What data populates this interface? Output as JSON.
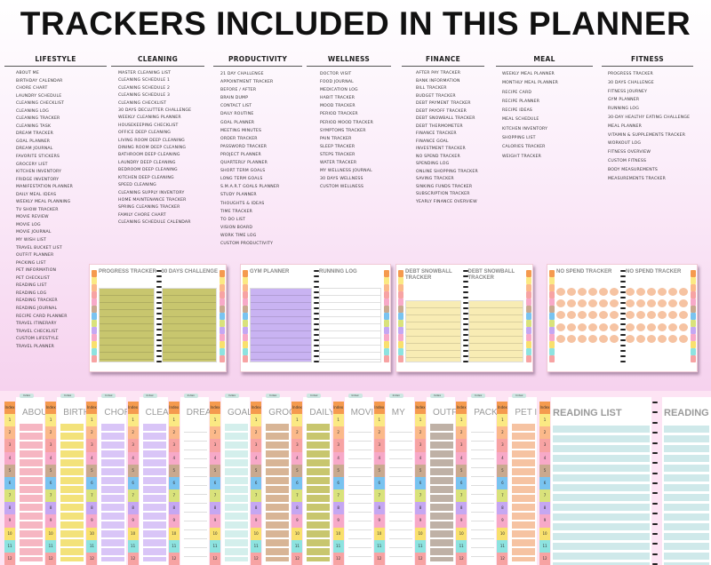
{
  "title": "TRACKERS INCLUDED IN THIS PLANNER",
  "categories": [
    {
      "name": "LIFESTYLE",
      "items": [
        "ABOUT ME",
        "BIRTHDAY CALENDAR",
        "CHORE CHART",
        "LAUNDRY SCHEDULE",
        "CLEANING CHECKLIST",
        "CLEANING LOG",
        "CLEANING TRACKER",
        "CLEANING TASK",
        "DREAM TRACKER",
        "GOAL PLANNER",
        "DREAM JOURNAL",
        "FAVORITE STICKERS",
        "GROCERY LIST",
        "KITCHEN INVENTORY",
        "FRIDGE INVENTORY",
        "MANIFESTATION PLANNER",
        "DAILY MEAL IDEAS",
        "WEEKLY MEAL PLANNING",
        "TV SHOW TRACKER",
        "MOVIE REVIEW",
        "MOVIE LOG",
        "MOVIE JOURNAL",
        "MY WISH LIST",
        "TRAVEL BUCKET LIST",
        "OUTFIT PLANNER",
        "PACKING LIST",
        "PET INFORMATION",
        "PET CHECKLIST",
        "READING LIST",
        "READING LOG",
        "READING TRACKER",
        "READING JOURNAL",
        "RECIPE CARD PLANNER",
        "TRAVEL ITINERARY",
        "TRAVEL CHECKLIST",
        "CUSTOM LIFESTYLE",
        "TRAVEL PLANNER"
      ]
    },
    {
      "name": "CLEANING",
      "items": [
        "MASTER CLEANING LIST",
        "CLEANING SCHEDULE 1",
        "CLEANING SCHEDULE 2",
        "CLEANING SCHEDULE 3",
        "CLEANING CHECKLIST",
        "30 DAYS DECLUTTER CHALLENGE",
        "WEEKLY CLEANING PLANNER",
        "HOUSEKEEPING CHECKLIST",
        "OFFICE DEEP CLEANING",
        "LIVING ROOM DEEP CLEANING",
        "DINING ROOM DEEP CLEANING",
        "BATHROOM DEEP CLEANING",
        "LAUNDRY DEEP CLEANING",
        "BEDROOM DEEP CLEANING",
        "KITCHEN DEEP CLEANING",
        "SPEED CLEANING",
        "CLEANING SUPPLY INVENTORY",
        "HOME MAINTENANCE TRACKER",
        "SPRING CLEANING TRACKER",
        "FAMILY CHORE CHART",
        "CLEANING SCHEDULE CALENDAR"
      ]
    },
    {
      "name": "PRODUCTIVITY",
      "items": [
        "21 DAY CHALLENGE",
        "APPOINTMENT TRACKER",
        "BEFORE / AFTER",
        "BRAIN DUMP",
        "CONTACT LIST",
        "DAILY ROUTINE",
        "GOAL PLANNER",
        "MEETING MINUTES",
        "ORDER TRACKER",
        "PASSWORD TRACKER",
        "PROJECT PLANNER",
        "QUARTERLY PLANNER",
        "SHORT TERM GOALS",
        "LONG TERM GOALS",
        "S.M.A.R.T GOALS PLANNER",
        "STUDY PLANNER",
        "THOUGHTS & IDEAS",
        "TIME TRACKER",
        "TO DO LIST",
        "VISION BOARD",
        "WORK TIME LOG",
        "CUSTOM PRODUCTIVITY"
      ]
    },
    {
      "name": "WELLNESS",
      "items": [
        "DOCTOR VISIT",
        "FOOD JOURNAL",
        "MEDICATION LOG",
        "HABIT TRACKER",
        "MOOD TRACKER",
        "PERIOD TRACKER",
        "PERIOD MOOD TRACKER",
        "SYMPTOMS TRACKER",
        "PAIN TRACKER",
        "SLEEP TRACKER",
        "STEPS TRACKER",
        "WATER TRACKER",
        "MY WELLNESS JOURNAL",
        "30 DAYS WELLNESS",
        "CUSTOM WELLNESS"
      ]
    },
    {
      "name": "FINANCE",
      "items": [
        "AFTER PAY TRACKER",
        "BANK INFORMATION",
        "BILL TRACKER",
        "BUDGET TRACKER",
        "DEBT PAYMENT TRACKER",
        "DEBT PAYOFF TRACKER",
        "DEBT SNOWBALL TRACKER",
        "DEBT THERMOMETER",
        "FINANCE TRACKER",
        "FINANCE GOAL",
        "INVESTMENT TRACKER",
        "NO SPEND TRACKER",
        "SPENDING LOG",
        "ONLINE SHOPPING TRACKER",
        "SAVING TRACKER",
        "SINKING FUNDS TRACKER",
        "SUBSCRIPTION TRACKER",
        "YEARLY FINANCE OVERVIEW"
      ]
    },
    {
      "name": "MEAL",
      "items": [
        "WEEKLY MEAL PLANNER",
        "MONTHLY MEAL PLANNER",
        "RECIPE CARD",
        "RECIPE PLANNER",
        "RECIPE IDEAS",
        "MEAL SCHEDULE",
        "KITCHEN INVENTORY",
        "SHOPPING LIST",
        "CALORIES TRACKER",
        "WEIGHT TRACKER"
      ]
    },
    {
      "name": "FITNESS",
      "items": [
        "PROGRESS TRACKER",
        "30 DAYS CHALLENGE",
        "FITNESS JOURNEY",
        "GYM PLANNER",
        "RUNNING LOG",
        "30-DAY HEALTHY EATING CHALLENGE",
        "MEAL PLANNER",
        "VITAMIN & SUPPLEMENTS TRACKER",
        "WORKOUT LOG",
        "FITNESS OVERVIEW",
        "CUSTOM FITNESS",
        "BODY MEASUREMENTS",
        "MEASUREMENTS TRACKER"
      ]
    }
  ],
  "spreads": [
    {
      "left": "PROGRESS TRACKER",
      "right": "30 DAYS CHALLENGE",
      "left_fill": "#c8c66e",
      "right_fill": "#c8c66e"
    },
    {
      "left": "GYM PLANNER",
      "right": "RUNNING LOG",
      "left_fill": "#c9b3f2",
      "right_fill": "#ffffff"
    },
    {
      "left": "DEBT SNOWBALL TRACKER",
      "right": "DEBT SNOWBALL TRACKER",
      "left_fill": "#f8ecb4",
      "right_fill": "#f8ecb4"
    },
    {
      "left": "NO SPEND TRACKER",
      "right": "NO SPEND TRACKER",
      "left_fill": "#f6c3a2",
      "right_fill": "#f6c3a2"
    }
  ],
  "strip_pages": [
    {
      "title": "ABOUT",
      "accent": "#f6b6c2"
    },
    {
      "title": "BIRTHD",
      "accent": "#f3e27a"
    },
    {
      "title": "CHORE",
      "accent": "#d9c5f7"
    },
    {
      "title": "CLEAN",
      "accent": "#d9c5f7"
    },
    {
      "title": "DREA",
      "accent": "#eeeeee"
    },
    {
      "title": "GOAL",
      "accent": "#d4efec"
    },
    {
      "title": "GROC",
      "accent": "#d8b596"
    },
    {
      "title": "DAILY M",
      "accent": "#c8c66e"
    },
    {
      "title": "MOVI",
      "accent": "#eeeeee"
    },
    {
      "title": "MY",
      "accent": "#eeeeee"
    },
    {
      "title": "OUTF",
      "accent": "#bfb1a6"
    },
    {
      "title": "PACK",
      "accent": "#eeeeee"
    },
    {
      "title": "PET I",
      "accent": "#f6c3a2"
    }
  ],
  "reading": {
    "left": "READING LIST",
    "right": "READING L",
    "fill": "#cfe9ea"
  },
  "index_label": "Index",
  "tab_labels": [
    "Index",
    "1",
    "2",
    "3",
    "4",
    "5",
    "6",
    "7",
    "8",
    "9",
    "10",
    "11",
    "12"
  ],
  "tab_colors": [
    "#f59a4e",
    "#fbe983",
    "#fbb98a",
    "#f7a3a3",
    "#f7a9c8",
    "#c9a98f",
    "#79c3f0",
    "#d9e27b",
    "#c5a7f2",
    "#f7a9c8",
    "#f9e06d",
    "#8de3e0",
    "#f7a3a3"
  ]
}
